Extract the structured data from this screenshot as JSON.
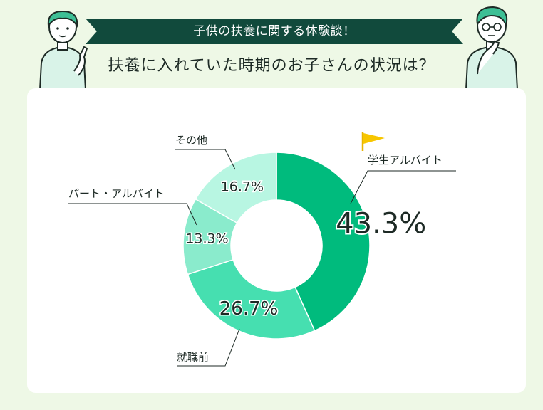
{
  "header": {
    "banner": "子供の扶養に関する体験談！",
    "question": "扶養に入れていた時期のお子さんの状況は？"
  },
  "icons": [
    "woman-pointing-illustration",
    "man-thinking-illustration",
    "yellow-flag-icon"
  ],
  "colors": {
    "background": "#eef8e6",
    "banner": "#114a3c",
    "slices": [
      "#00bb7d",
      "#46dfb0",
      "#8aebcc",
      "#b8f6e2"
    ]
  },
  "chart_data": {
    "type": "pie",
    "donut": true,
    "categories": [
      "学生アルバイト",
      "就職前",
      "パート・アルバイト",
      "その他"
    ],
    "values": [
      43.3,
      26.7,
      13.3,
      16.7
    ],
    "value_labels": [
      "43.3%",
      "26.7%",
      "13.3%",
      "16.7%"
    ],
    "legend": "none"
  }
}
